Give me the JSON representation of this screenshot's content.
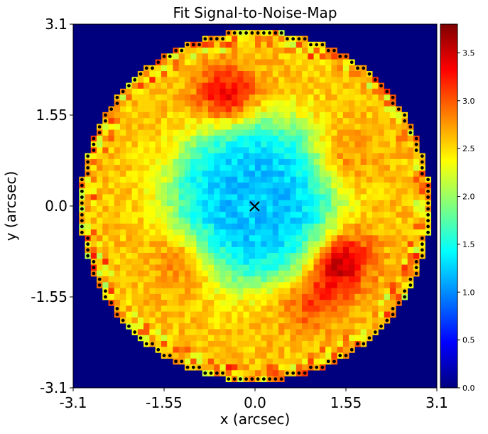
{
  "chart_data": {
    "type": "heatmap",
    "title": "Fit Signal-to-Noise-Map",
    "xlabel": "x (arcsec)",
    "ylabel": "y (arcsec)",
    "xlim": [
      -3.1,
      3.1
    ],
    "ylim": [
      -3.1,
      3.1
    ],
    "xticks": [
      "-3.1",
      "-1.55",
      "0.0",
      "1.55",
      "3.1"
    ],
    "yticks": [
      "3.1",
      "1.55",
      "0.0",
      "-1.55",
      "-3.1"
    ],
    "colorbar": {
      "colormap": "jet",
      "range": [
        0.0,
        3.8
      ],
      "ticks": [
        "0.0",
        "0.5",
        "1.0",
        "1.5",
        "2.0",
        "2.5",
        "3.0",
        "3.5"
      ]
    },
    "grid": false,
    "mask_radius_arcsec": 3.0,
    "pixel_scale_arcsec": 0.1,
    "centre_marker": {
      "x": 0.0,
      "y": 0.0,
      "symbol": "x"
    },
    "features": {
      "background_level": 2.6,
      "inner_disk": {
        "centre": [
          0.0,
          0.1
        ],
        "radius": 1.4,
        "level": 1.2
      },
      "arcs": [
        {
          "centre": [
            1.4,
            -0.9
          ],
          "level": 3.8
        },
        {
          "centre": [
            1.3,
            0.7
          ],
          "level": 3.2
        },
        {
          "centre": [
            -0.45,
            1.78
          ],
          "level": 3.6
        },
        {
          "centre": [
            -1.1,
            -0.8
          ],
          "level": 3.3
        },
        {
          "centre": [
            0.9,
            -1.6
          ],
          "level": 3.1
        }
      ]
    }
  },
  "colors": {
    "outside_mask": "#00007f",
    "boundary_dots": "#000000"
  }
}
